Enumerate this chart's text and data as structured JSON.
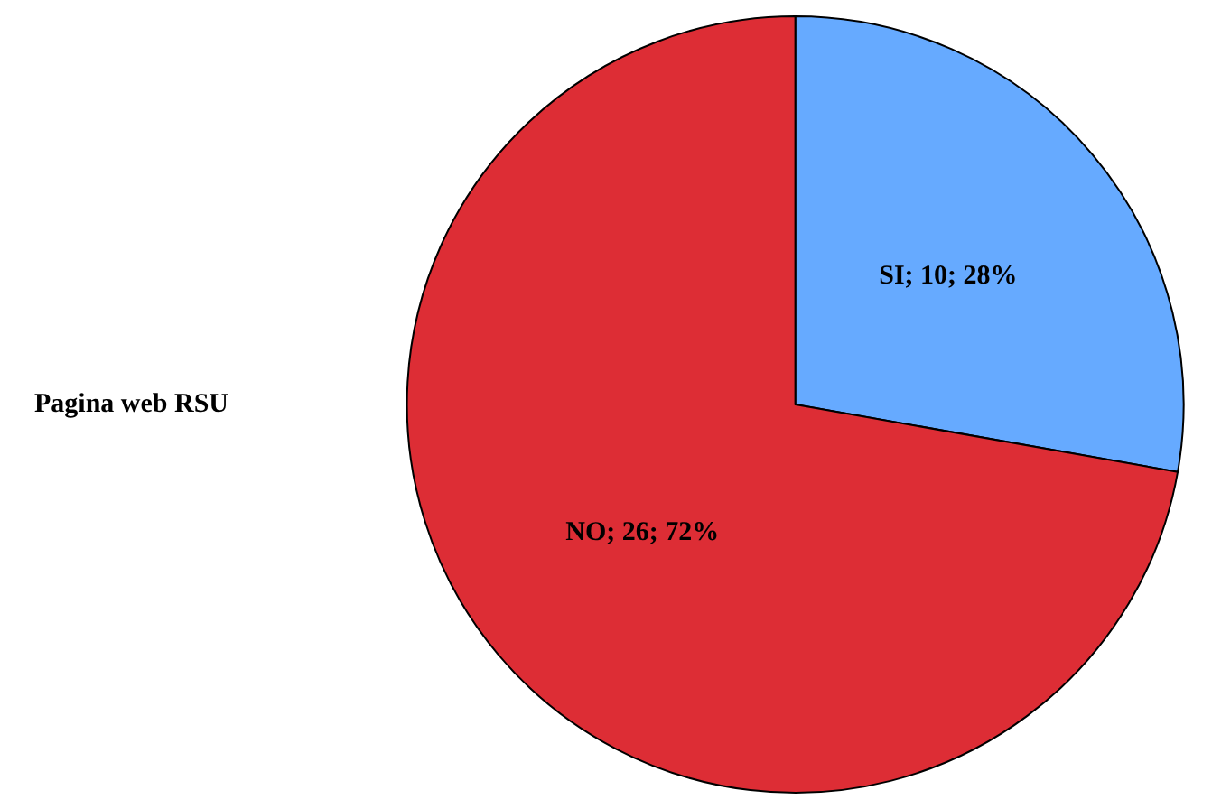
{
  "chart_data": {
    "type": "pie",
    "title": "Pagina web RSU",
    "values": [
      10,
      26
    ],
    "colors": [
      "#66aaff",
      "#dd2d35"
    ],
    "value_labels": [
      "SI; 10; 28%",
      "NO; 26; 72%"
    ]
  }
}
